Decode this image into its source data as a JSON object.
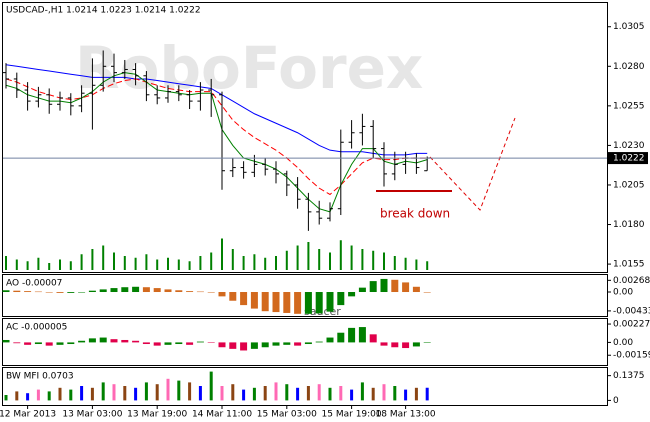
{
  "chart_data": [
    {
      "type": "ohlc",
      "title": "USDCAD-,H1  1.0214 1.0223 1.0214 1.0222",
      "watermark": "RoboForex",
      "annotation": "break down",
      "categories": [
        null,
        null,
        "12 Mar 2013",
        null,
        null,
        null,
        null,
        null,
        "13 Mar 03:00",
        null,
        null,
        null,
        null,
        null,
        "13 Mar 19:00",
        null,
        null,
        null,
        null,
        null,
        "14 Mar 11:00",
        null,
        null,
        null,
        null,
        null,
        "15 Mar 03:00",
        null,
        null,
        null,
        null,
        null,
        "15 Mar 19:00",
        null,
        null,
        null,
        null,
        "18 Mar 13:00",
        null,
        null
      ],
      "open": [
        1.0276,
        1.0272,
        1.0265,
        1.0258,
        1.0262,
        1.0256,
        1.026,
        1.0255,
        1.0263,
        1.0268,
        1.028,
        1.0276,
        1.0278,
        1.0274,
        1.0262,
        1.026,
        1.0264,
        1.0262,
        1.0258,
        1.0265,
        1.0262,
        1.0214,
        1.0216,
        1.0213,
        1.0218,
        1.0215,
        1.0212,
        1.0205,
        1.0196,
        1.0188,
        1.0184,
        1.019,
        1.0232,
        1.0238,
        1.0242,
        1.0228,
        1.0212,
        1.0218,
        1.0222,
        1.0214
      ],
      "high": [
        1.0282,
        1.0276,
        1.027,
        1.0267,
        1.0266,
        1.0264,
        1.0263,
        1.0268,
        1.0285,
        1.029,
        1.0288,
        1.0284,
        1.0282,
        1.0277,
        1.0268,
        1.0268,
        1.0268,
        1.0265,
        1.027,
        1.0272,
        1.0264,
        1.0222,
        1.022,
        1.0224,
        1.0222,
        1.022,
        1.0214,
        1.021,
        1.02,
        1.0195,
        1.0194,
        1.024,
        1.0246,
        1.025,
        1.0246,
        1.0232,
        1.0226,
        1.0226,
        1.0225,
        1.0223
      ],
      "low": [
        1.0266,
        1.026,
        1.0252,
        1.0254,
        1.025,
        1.0252,
        1.0249,
        1.0251,
        1.024,
        1.0264,
        1.027,
        1.0272,
        1.0268,
        1.0258,
        1.0256,
        1.0257,
        1.0258,
        1.0253,
        1.0252,
        1.0248,
        1.0202,
        1.021,
        1.0209,
        1.021,
        1.0211,
        1.0206,
        1.0198,
        1.019,
        1.0176,
        1.018,
        1.0182,
        1.0186,
        1.0228,
        1.023,
        1.0222,
        1.0204,
        1.0208,
        1.0212,
        1.0212,
        1.0214
      ],
      "close": [
        1.0272,
        1.0265,
        1.0258,
        1.0262,
        1.0256,
        1.026,
        1.0255,
        1.0263,
        1.0268,
        1.028,
        1.0276,
        1.0278,
        1.0274,
        1.0262,
        1.026,
        1.0264,
        1.0262,
        1.0258,
        1.0265,
        1.0262,
        1.0214,
        1.0216,
        1.0213,
        1.0218,
        1.0215,
        1.0212,
        1.0205,
        1.0196,
        1.0188,
        1.0184,
        1.019,
        1.0232,
        1.0238,
        1.0242,
        1.0228,
        1.0212,
        1.0218,
        1.0222,
        1.0216,
        1.0222
      ],
      "color": "#000000",
      "moving_averages": [
        {
          "color": "#0000ff",
          "dashed": false,
          "values": [
            1.0281,
            1.028,
            1.0279,
            1.0278,
            1.0277,
            1.0276,
            1.0275,
            1.0274,
            1.0273,
            1.0273,
            1.0273,
            1.0273,
            1.0272,
            1.0272,
            1.0271,
            1.027,
            1.0269,
            1.0268,
            1.0267,
            1.0266,
            1.0262,
            1.0258,
            1.0254,
            1.025,
            1.0247,
            1.0244,
            1.0241,
            1.0238,
            1.0234,
            1.023,
            1.0227,
            1.0226,
            1.0226,
            1.0226,
            1.0225,
            1.0224,
            1.0224,
            1.0224,
            1.0225,
            1.0225
          ]
        },
        {
          "color": "#ff0000",
          "dashed": true,
          "values": [
            1.0272,
            1.027,
            1.0267,
            1.0264,
            1.0262,
            1.026,
            1.0259,
            1.026,
            1.0262,
            1.0266,
            1.0269,
            1.0271,
            1.0272,
            1.027,
            1.0268,
            1.0266,
            1.0265,
            1.0264,
            1.0264,
            1.0264,
            1.0255,
            1.0246,
            1.024,
            1.0235,
            1.0231,
            1.0227,
            1.0222,
            1.0216,
            1.0209,
            1.0203,
            1.0199,
            1.0205,
            1.0212,
            1.0219,
            1.0222,
            1.0221,
            1.0221,
            1.0222,
            1.0222,
            1.0222
          ]
        },
        {
          "color": "#008000",
          "dashed": false,
          "values": [
            1.0268,
            1.0266,
            1.0262,
            1.026,
            1.0258,
            1.0258,
            1.0257,
            1.026,
            1.0264,
            1.027,
            1.0274,
            1.0276,
            1.0275,
            1.027,
            1.0265,
            1.0264,
            1.0263,
            1.0262,
            1.0263,
            1.0263,
            1.024,
            1.023,
            1.0222,
            1.022,
            1.0218,
            1.0215,
            1.021,
            1.0203,
            1.0196,
            1.019,
            1.0188,
            1.0205,
            1.0218,
            1.0228,
            1.0228,
            1.022,
            1.0218,
            1.022,
            1.0219,
            1.0221
          ]
        }
      ],
      "last_price": 1.0222,
      "ylim": [
        1.015,
        1.032
      ],
      "yticks": [
        1.0305,
        {
          "value": 1.028,
          "label": "1.0280"
        },
        1.0255,
        {
          "value": 1.023,
          "label": "1.0230"
        },
        1.0205,
        {
          "value": 1.018,
          "label": "1.0180"
        },
        1.0155
      ]
    },
    {
      "type": "bar",
      "color": "#008000",
      "ylim": [
        0,
        100
      ],
      "values": [
        40,
        30,
        25,
        35,
        20,
        30,
        25,
        45,
        60,
        70,
        50,
        40,
        35,
        45,
        30,
        35,
        30,
        25,
        40,
        50,
        90,
        60,
        40,
        45,
        35,
        40,
        55,
        70,
        80,
        60,
        50,
        85,
        70,
        60,
        55,
        50,
        40,
        35,
        30,
        25
      ]
    },
    {
      "type": "oscillator",
      "title": "AO -0.00007",
      "annotation": "saucer",
      "up_color": "#008000",
      "down_color": "#d2691e",
      "values": [
        0.0004,
        0.0003,
        0.0002,
        0.0001,
        -0.0001,
        -0.0002,
        -0.0002,
        0.0,
        0.0003,
        0.0006,
        0.0009,
        0.0011,
        0.0012,
        0.0011,
        0.0009,
        0.0006,
        0.0004,
        0.0002,
        0.0001,
        0.0,
        -0.001,
        -0.002,
        -0.003,
        -0.0038,
        -0.0044,
        -0.0046,
        -0.0048,
        -0.005,
        -0.005,
        -0.0049,
        -0.0045,
        -0.003,
        -0.001,
        0.001,
        0.0025,
        0.003,
        0.0028,
        0.0022,
        0.0012,
        -7e-05
      ],
      "ylim": [
        -0.0055,
        0.0039
      ],
      "yticks": [
        0.00268,
        {
          "value": 0,
          "label": "0.00"
        },
        -0.00433
      ]
    },
    {
      "type": "oscillator",
      "title": "AC -0.000005",
      "up_color": "#008000",
      "down_color": "#e0004a",
      "values": [
        0.0003,
        -0.0001,
        -0.0003,
        -0.0002,
        -0.0004,
        -0.0003,
        -0.0002,
        0.0002,
        0.0005,
        0.0006,
        0.0004,
        0.0003,
        0.0002,
        -0.0002,
        -0.0004,
        -0.0003,
        -0.0002,
        -0.0003,
        0.0001,
        0.0,
        -0.0006,
        -0.0008,
        -0.001,
        -0.0008,
        -0.0006,
        -0.0004,
        -0.0003,
        -0.0004,
        -0.0002,
        0.0001,
        0.0006,
        0.0012,
        0.0018,
        0.0019,
        0.001,
        -0.0004,
        -0.0006,
        -0.0007,
        -0.0005,
        -5e-06
      ],
      "ylim": [
        -0.0028,
        0.0029
      ],
      "yticks": [
        0.002275,
        {
          "value": 0,
          "label": "0.00"
        },
        -0.00159
      ]
    },
    {
      "type": "colored_bar",
      "title": "BW MFI 0.0703",
      "colors": [
        "#008000",
        "#8b4513",
        "#0000ff",
        "#ff69b4",
        "#008000",
        "#8b4513",
        "#008000",
        "#0000ff",
        "#8b4513",
        "#008000",
        "#ff69b4",
        "#8b4513",
        "#0000ff",
        "#008000",
        "#8b4513",
        "#ff69b4",
        "#008000",
        "#8b4513",
        "#0000ff",
        "#008000",
        "#ff69b4",
        "#8b4513",
        "#0000ff",
        "#008000",
        "#8b4513",
        "#ff69b4",
        "#008000",
        "#0000ff",
        "#8b4513",
        "#ff69b4",
        "#008000",
        "#ff69b4",
        "#0000ff",
        "#008000",
        "#8b4513",
        "#ff69b4",
        "#008000",
        "#0000ff",
        "#8b4513",
        "#0000ff"
      ],
      "values": [
        0.03,
        0.05,
        0.04,
        0.06,
        0.05,
        0.07,
        0.06,
        0.08,
        0.07,
        0.1,
        0.09,
        0.08,
        0.07,
        0.1,
        0.09,
        0.12,
        0.11,
        0.1,
        0.08,
        0.16,
        0.08,
        0.09,
        0.06,
        0.07,
        0.08,
        0.1,
        0.09,
        0.07,
        0.08,
        0.09,
        0.07,
        0.08,
        0.06,
        0.1,
        0.07,
        0.09,
        0.08,
        0.06,
        0.07,
        0.0703
      ],
      "ylim": [
        -0.02,
        0.18
      ],
      "yticks": [
        0.1375,
        0
      ]
    }
  ]
}
